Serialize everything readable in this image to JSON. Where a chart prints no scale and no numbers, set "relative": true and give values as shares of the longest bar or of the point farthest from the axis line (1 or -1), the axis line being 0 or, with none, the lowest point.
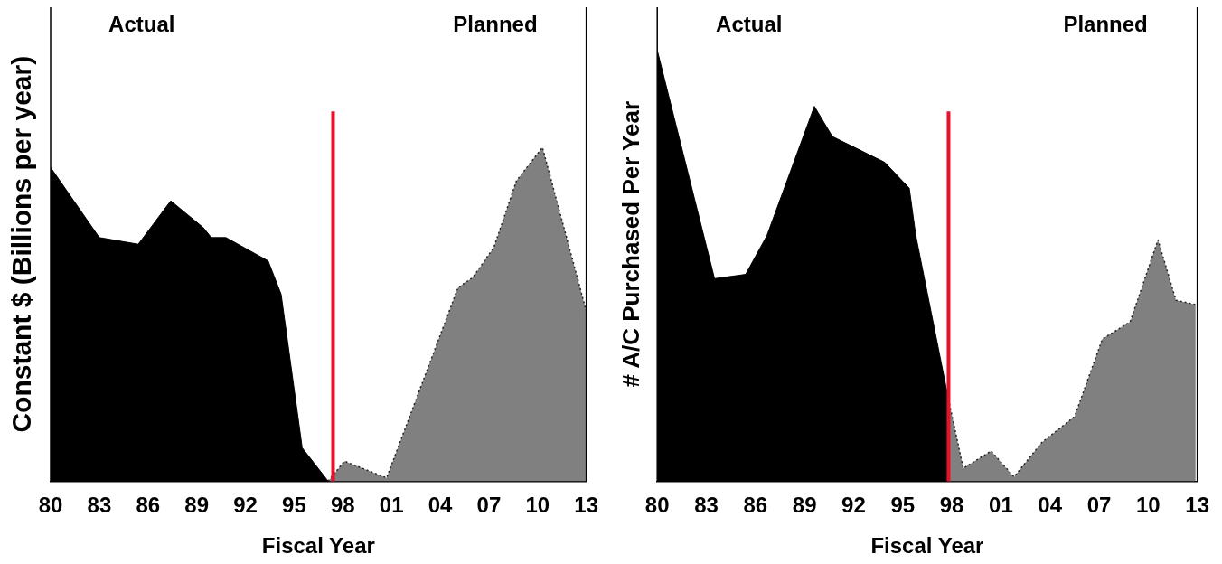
{
  "chart_data": [
    {
      "type": "area",
      "relative": true,
      "xlabel": "Fiscal Year",
      "ylabel": "Constant $ (Billions per year)",
      "annotations": [
        "Actual",
        "Planned"
      ],
      "xlim": [
        1980,
        2013
      ],
      "xticks": [
        {
          "value": 1980,
          "label": "80"
        },
        {
          "value": 1983,
          "label": "83"
        },
        {
          "value": 1986,
          "label": "86"
        },
        {
          "value": 1989,
          "label": "89"
        },
        {
          "value": 1992,
          "label": "92"
        },
        {
          "value": 1995,
          "label": "95"
        },
        {
          "value": 1998,
          "label": "98"
        },
        {
          "value": 2001,
          "label": "01"
        },
        {
          "value": 2004,
          "label": "04"
        },
        {
          "value": 2007,
          "label": "07"
        },
        {
          "value": 2010,
          "label": "10"
        },
        {
          "value": 2013,
          "label": "13"
        }
      ],
      "grid": false,
      "legend": false,
      "series": [
        {
          "color": "#000000",
          "x": [
            1980,
            1983,
            1985.4,
            1987.4,
            1989.4,
            1989.9,
            1990.8,
            1993.4,
            1994.2,
            1995.5,
            1997.1
          ],
          "values": [
            0.94,
            0.73,
            0.71,
            0.84,
            0.76,
            0.73,
            0.73,
            0.66,
            0.56,
            0.1,
            0
          ]
        },
        {
          "color": "#808080",
          "line_style": "dotted",
          "x": [
            1997.1,
            1998.1,
            2000.7,
            2005.1,
            2006,
            2007.3,
            2008.7,
            2010.3,
            2013
          ],
          "values": [
            0,
            0.06,
            0.01,
            0.58,
            0.61,
            0.7,
            0.9,
            1,
            0.51
          ]
        }
      ],
      "ref_lines": [
        {
          "axis": "x",
          "value": 1997.4,
          "color": "#e8102a"
        }
      ]
    },
    {
      "type": "area",
      "relative": true,
      "xlabel": "Fiscal Year",
      "ylabel": "# A/C Purchased Per Year",
      "annotations": [
        "Actual",
        "Planned"
      ],
      "xlim": [
        1980,
        2013
      ],
      "xticks": [
        {
          "value": 1980,
          "label": "80"
        },
        {
          "value": 1983,
          "label": "83"
        },
        {
          "value": 1986,
          "label": "86"
        },
        {
          "value": 1989,
          "label": "89"
        },
        {
          "value": 1992,
          "label": "92"
        },
        {
          "value": 1995,
          "label": "95"
        },
        {
          "value": 1998,
          "label": "98"
        },
        {
          "value": 2001,
          "label": "01"
        },
        {
          "value": 2004,
          "label": "04"
        },
        {
          "value": 2007,
          "label": "07"
        },
        {
          "value": 2010,
          "label": "10"
        },
        {
          "value": 2013,
          "label": "13"
        }
      ],
      "grid": false,
      "legend": false,
      "series": [
        {
          "color": "#000000",
          "x": [
            1980,
            1983.5,
            1985.4,
            1986.7,
            1989.6,
            1990.7,
            1993.9,
            1995.4,
            1995.8,
            1997.8
          ],
          "values": [
            1,
            0.47,
            0.48,
            0.57,
            0.87,
            0.8,
            0.74,
            0.68,
            0.57,
            0.19
          ]
        },
        {
          "color": "#808080",
          "line_style": "dotted",
          "x": [
            1997.8,
            1998.7,
            2000.4,
            2001.8,
            2003.5,
            2005.5,
            2007.2,
            2008.9,
            2010.6,
            2011.7,
            2012.9
          ],
          "values": [
            0.19,
            0.03,
            0.07,
            0.01,
            0.09,
            0.15,
            0.33,
            0.37,
            0.56,
            0.42,
            0.41
          ]
        }
      ],
      "ref_lines": [
        {
          "axis": "x",
          "value": 1997.8,
          "color": "#e8102a"
        }
      ]
    }
  ]
}
